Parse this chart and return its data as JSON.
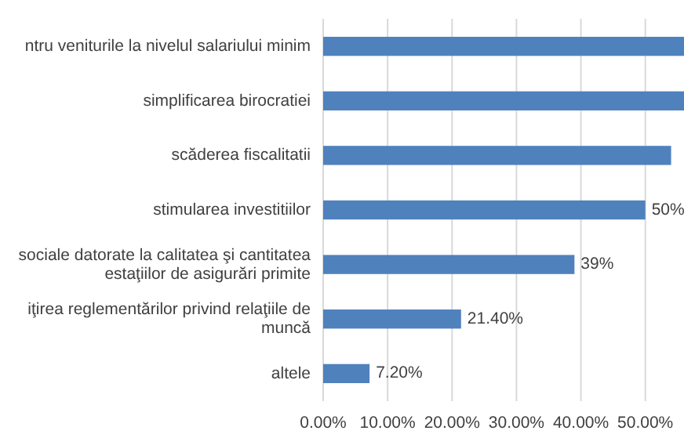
{
  "chart_data": {
    "type": "bar",
    "orientation": "horizontal",
    "categories": [
      "ntru veniturile la nivelul salariului minim",
      "simplificarea birocratiei",
      "scăderea fiscalitatii",
      "stimularea investitiilor",
      "sociale datorate la calitatea şi cantitatea\nestaţiilor de asigurări primite",
      "iţirea reglementărilor privind relaţiile de\nmuncă",
      "altele"
    ],
    "values": [
      56,
      56,
      54,
      50,
      39,
      21.4,
      7.2
    ],
    "value_labels": [
      null,
      null,
      null,
      "50%",
      "39%",
      "21.40%",
      "7.20%"
    ],
    "color": "#4f81bd",
    "xlim": [
      0,
      56
    ],
    "xticks": [
      {
        "value": 0,
        "label": "0.00%"
      },
      {
        "value": 10,
        "label": "10.00%"
      },
      {
        "value": 20,
        "label": "20.00%"
      },
      {
        "value": 30,
        "label": "30.00%"
      },
      {
        "value": 40,
        "label": "40.00%"
      },
      {
        "value": 50,
        "label": "50.00%"
      }
    ],
    "grid": "x"
  }
}
